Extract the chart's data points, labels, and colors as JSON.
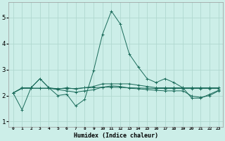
{
  "xlabel": "Humidex (Indice chaleur)",
  "ylabel": "",
  "bg_color": "#cceee8",
  "grid_color": "#b0d8d0",
  "line_color": "#1a6b5a",
  "xlim": [
    -0.5,
    23.5
  ],
  "ylim": [
    0.8,
    5.6
  ],
  "yticks": [
    1,
    2,
    3,
    4,
    5
  ],
  "xticks": [
    0,
    1,
    2,
    3,
    4,
    5,
    6,
    7,
    8,
    9,
    10,
    11,
    12,
    13,
    14,
    15,
    16,
    17,
    18,
    19,
    20,
    21,
    22,
    23
  ],
  "lines": [
    [
      2.1,
      1.45,
      2.3,
      2.65,
      2.3,
      2.0,
      2.05,
      1.6,
      1.85,
      2.95,
      4.35,
      5.25,
      4.75,
      3.6,
      3.1,
      2.65,
      2.5,
      2.65,
      2.5,
      2.3,
      1.9,
      1.9,
      2.05,
      2.2
    ],
    [
      2.1,
      2.3,
      2.3,
      2.65,
      2.3,
      2.25,
      2.3,
      2.25,
      2.3,
      2.35,
      2.45,
      2.45,
      2.45,
      2.45,
      2.4,
      2.35,
      2.3,
      2.3,
      2.3,
      2.3,
      2.3,
      2.3,
      2.3,
      2.3
    ],
    [
      2.1,
      2.28,
      2.28,
      2.28,
      2.28,
      2.27,
      2.27,
      2.27,
      2.3,
      2.3,
      2.32,
      2.32,
      2.31,
      2.3,
      2.29,
      2.28,
      2.27,
      2.27,
      2.27,
      2.27,
      2.27,
      2.27,
      2.27,
      2.27
    ],
    [
      2.1,
      2.28,
      2.28,
      2.28,
      2.28,
      2.23,
      2.18,
      2.13,
      2.18,
      2.22,
      2.32,
      2.37,
      2.35,
      2.28,
      2.26,
      2.23,
      2.2,
      2.18,
      2.18,
      2.18,
      1.98,
      1.93,
      2.0,
      2.18
    ]
  ]
}
